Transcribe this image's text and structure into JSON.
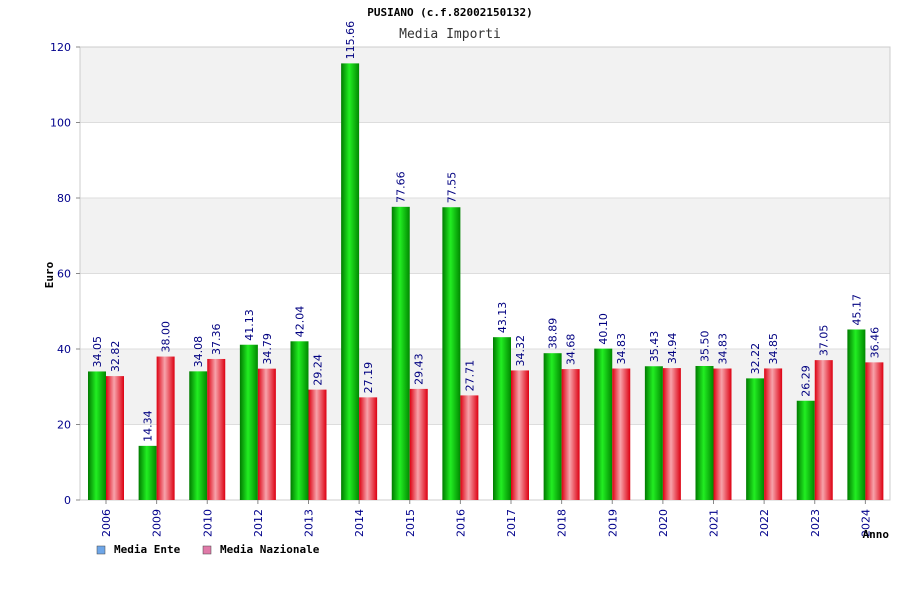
{
  "header": {
    "title": "PUSIANO (c.f.82002150132)",
    "subtitle": "Media Importi"
  },
  "colors": {
    "ente": "#00cc00",
    "nazionale": "#ee2233",
    "ente_legend": "#6ea6e8",
    "nazionale_legend": "#e07aa8",
    "band": "#f2f2f2",
    "tick_text": "#00008b",
    "value_text": "#000080"
  },
  "chart_data": {
    "type": "bar",
    "title": "Media Importi",
    "xlabel": "Anno",
    "ylabel": "Euro",
    "ylim": [
      0,
      120
    ],
    "yticks": [
      0,
      20,
      40,
      60,
      80,
      100,
      120
    ],
    "grid": "horizontal-bands",
    "legend_position": "bottom-left",
    "categories": [
      "2006",
      "2009",
      "2010",
      "2012",
      "2013",
      "2014",
      "2015",
      "2016",
      "2017",
      "2018",
      "2019",
      "2020",
      "2021",
      "2022",
      "2023",
      "2024"
    ],
    "series": [
      {
        "name": "Media Ente",
        "values": [
          34.05,
          14.34,
          34.08,
          41.13,
          42.04,
          115.66,
          77.66,
          77.55,
          43.13,
          38.89,
          40.1,
          35.43,
          35.5,
          32.22,
          26.29,
          45.17
        ],
        "labels": [
          "34.05",
          "14.34",
          "34.08",
          "41.13",
          "42.04",
          "115.66",
          "77.66",
          "77.55",
          "43.13",
          "38.89",
          "40.10",
          "35.43",
          "35.50",
          "32.22",
          "26.29",
          "45.17"
        ]
      },
      {
        "name": "Media Nazionale",
        "values": [
          32.82,
          38.0,
          37.36,
          34.79,
          29.24,
          27.19,
          29.43,
          27.71,
          34.32,
          34.68,
          34.83,
          34.94,
          34.83,
          34.85,
          37.05,
          36.46
        ],
        "labels": [
          "32.82",
          "38.00",
          "37.36",
          "34.79",
          "29.24",
          "27.19",
          "29.43",
          "27.71",
          "34.32",
          "34.68",
          "34.83",
          "34.94",
          "34.83",
          "34.85",
          "37.05",
          "36.46"
        ]
      }
    ]
  }
}
